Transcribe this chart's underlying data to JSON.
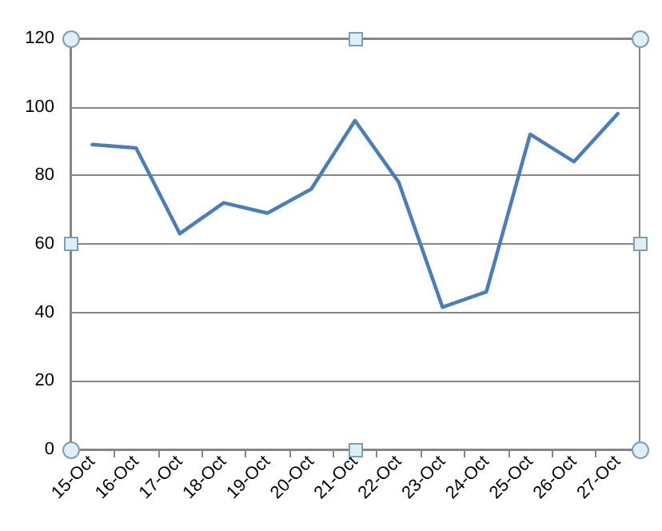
{
  "chart_data": {
    "type": "line",
    "categories": [
      "15-Oct",
      "16-Oct",
      "17-Oct",
      "18-Oct",
      "19-Oct",
      "20-Oct",
      "21-Oct",
      "22-Oct",
      "23-Oct",
      "24-Oct",
      "25-Oct",
      "26-Oct",
      "27-Oct"
    ],
    "series": [
      {
        "color": "#4a7ebb",
        "values": [
          89,
          88,
          63,
          72,
          69,
          76,
          96,
          78,
          41.5,
          46,
          92,
          84,
          98
        ]
      }
    ],
    "ylim": [
      0,
      120
    ],
    "yticks": [
      0,
      20,
      40,
      60,
      80,
      100,
      120
    ],
    "grid": "y",
    "marker": "none",
    "line_style": "solid"
  }
}
